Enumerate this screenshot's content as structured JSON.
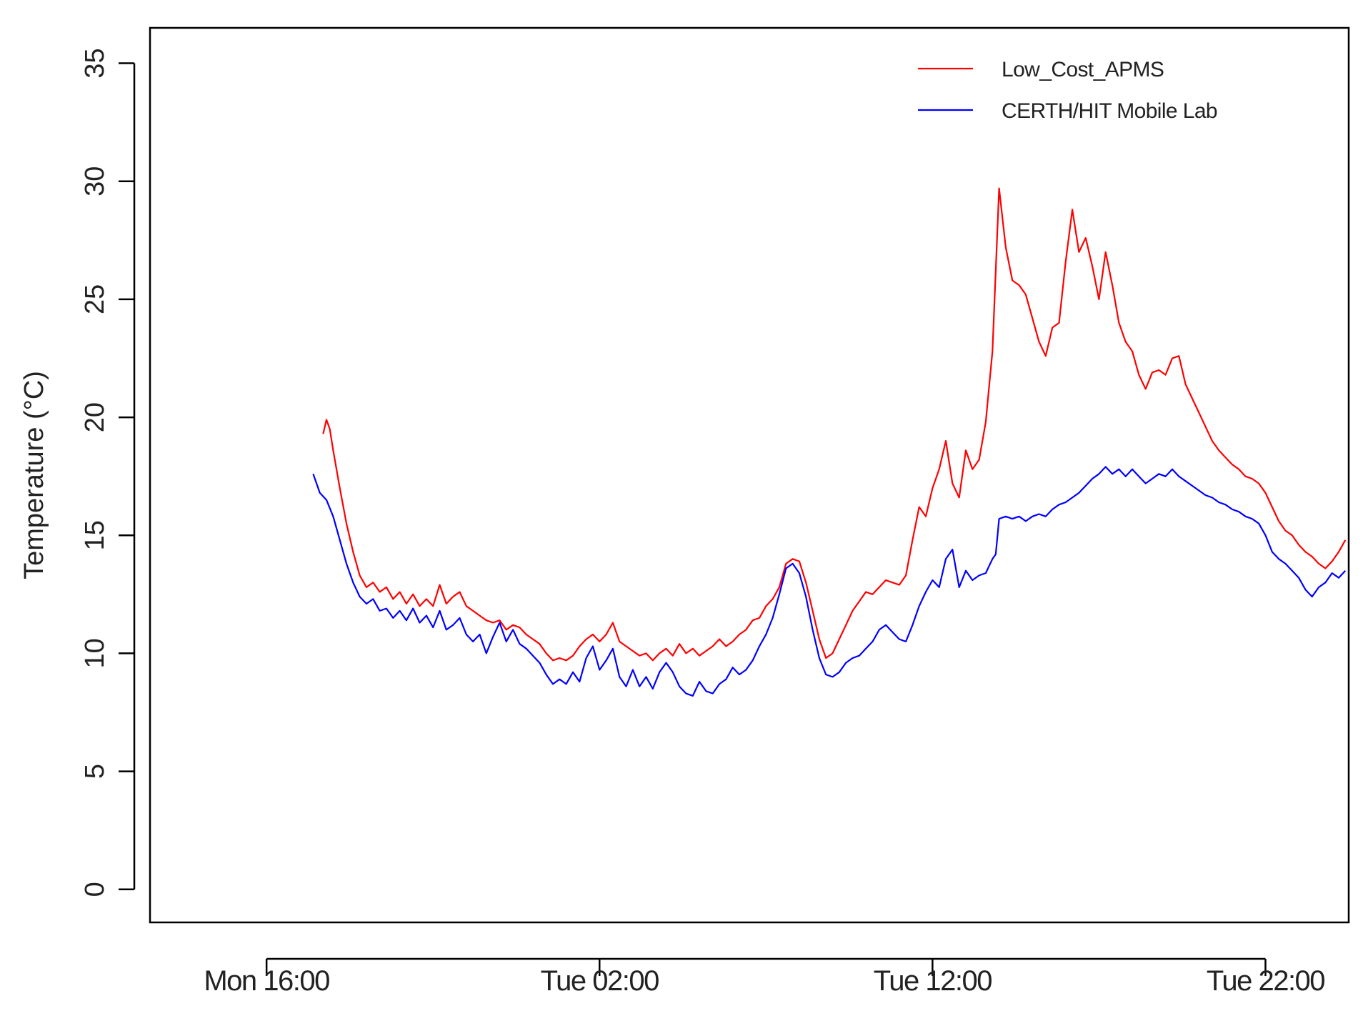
{
  "chart_data": {
    "type": "line",
    "title": "",
    "xlabel": "",
    "ylabel": "Temperature (°C)",
    "x_axis": {
      "unit": "time",
      "range_hours": [
        -3.5,
        32.5
      ],
      "ticks": [
        {
          "label": "Mon 16:00",
          "hours_from_mon_16": 0
        },
        {
          "label": "Tue 02:00",
          "hours_from_mon_16": 10
        },
        {
          "label": "Tue 12:00",
          "hours_from_mon_16": 20
        },
        {
          "label": "Tue 22:00",
          "hours_from_mon_16": 30
        }
      ]
    },
    "ylim": [
      -1.4,
      36.5
    ],
    "yticks": [
      0,
      5,
      10,
      15,
      20,
      25,
      30,
      35
    ],
    "grid": false,
    "legend_position": "top-right",
    "series": [
      {
        "name": "Low_Cost_APMS",
        "color": "#ff0000",
        "points": [
          [
            1.7,
            19.3
          ],
          [
            1.8,
            19.9
          ],
          [
            1.9,
            19.5
          ],
          [
            2.0,
            18.6
          ],
          [
            2.2,
            17.0
          ],
          [
            2.4,
            15.5
          ],
          [
            2.6,
            14.3
          ],
          [
            2.8,
            13.3
          ],
          [
            3.0,
            12.8
          ],
          [
            3.2,
            13.0
          ],
          [
            3.4,
            12.6
          ],
          [
            3.6,
            12.8
          ],
          [
            3.8,
            12.3
          ],
          [
            4.0,
            12.6
          ],
          [
            4.2,
            12.1
          ],
          [
            4.4,
            12.5
          ],
          [
            4.6,
            12.0
          ],
          [
            4.8,
            12.3
          ],
          [
            5.0,
            12.0
          ],
          [
            5.2,
            12.9
          ],
          [
            5.4,
            12.1
          ],
          [
            5.6,
            12.4
          ],
          [
            5.8,
            12.6
          ],
          [
            6.0,
            12.0
          ],
          [
            6.2,
            11.8
          ],
          [
            6.4,
            11.6
          ],
          [
            6.6,
            11.4
          ],
          [
            6.8,
            11.3
          ],
          [
            7.0,
            11.4
          ],
          [
            7.2,
            11.0
          ],
          [
            7.4,
            11.2
          ],
          [
            7.6,
            11.1
          ],
          [
            7.8,
            10.8
          ],
          [
            8.0,
            10.6
          ],
          [
            8.2,
            10.4
          ],
          [
            8.4,
            10.0
          ],
          [
            8.6,
            9.7
          ],
          [
            8.8,
            9.8
          ],
          [
            9.0,
            9.7
          ],
          [
            9.2,
            9.9
          ],
          [
            9.4,
            10.3
          ],
          [
            9.6,
            10.6
          ],
          [
            9.8,
            10.8
          ],
          [
            10.0,
            10.5
          ],
          [
            10.2,
            10.8
          ],
          [
            10.4,
            11.3
          ],
          [
            10.6,
            10.5
          ],
          [
            10.8,
            10.3
          ],
          [
            11.0,
            10.1
          ],
          [
            11.2,
            9.9
          ],
          [
            11.4,
            10.0
          ],
          [
            11.6,
            9.7
          ],
          [
            11.8,
            10.0
          ],
          [
            12.0,
            10.2
          ],
          [
            12.2,
            9.9
          ],
          [
            12.4,
            10.4
          ],
          [
            12.6,
            10.0
          ],
          [
            12.8,
            10.2
          ],
          [
            13.0,
            9.9
          ],
          [
            13.2,
            10.1
          ],
          [
            13.4,
            10.3
          ],
          [
            13.6,
            10.6
          ],
          [
            13.8,
            10.3
          ],
          [
            14.0,
            10.5
          ],
          [
            14.2,
            10.8
          ],
          [
            14.4,
            11.0
          ],
          [
            14.6,
            11.4
          ],
          [
            14.8,
            11.5
          ],
          [
            15.0,
            12.0
          ],
          [
            15.2,
            12.3
          ],
          [
            15.4,
            12.8
          ],
          [
            15.6,
            13.8
          ],
          [
            15.8,
            14.0
          ],
          [
            16.0,
            13.9
          ],
          [
            16.2,
            13.0
          ],
          [
            16.4,
            11.8
          ],
          [
            16.6,
            10.6
          ],
          [
            16.8,
            9.8
          ],
          [
            17.0,
            10.0
          ],
          [
            17.2,
            10.6
          ],
          [
            17.4,
            11.2
          ],
          [
            17.6,
            11.8
          ],
          [
            17.8,
            12.2
          ],
          [
            18.0,
            12.6
          ],
          [
            18.2,
            12.5
          ],
          [
            18.4,
            12.8
          ],
          [
            18.6,
            13.1
          ],
          [
            18.8,
            13.0
          ],
          [
            19.0,
            12.9
          ],
          [
            19.2,
            13.3
          ],
          [
            19.4,
            14.8
          ],
          [
            19.6,
            16.2
          ],
          [
            19.8,
            15.8
          ],
          [
            20.0,
            17.0
          ],
          [
            20.2,
            17.8
          ],
          [
            20.4,
            19.0
          ],
          [
            20.6,
            17.2
          ],
          [
            20.8,
            16.6
          ],
          [
            21.0,
            18.6
          ],
          [
            21.2,
            17.8
          ],
          [
            21.4,
            18.2
          ],
          [
            21.6,
            19.8
          ],
          [
            21.8,
            22.8
          ],
          [
            22.0,
            29.7
          ],
          [
            22.2,
            27.2
          ],
          [
            22.4,
            25.8
          ],
          [
            22.6,
            25.6
          ],
          [
            22.8,
            25.2
          ],
          [
            23.0,
            24.2
          ],
          [
            23.2,
            23.2
          ],
          [
            23.4,
            22.6
          ],
          [
            23.6,
            23.8
          ],
          [
            23.8,
            24.0
          ],
          [
            24.0,
            26.6
          ],
          [
            24.2,
            28.8
          ],
          [
            24.4,
            27.0
          ],
          [
            24.6,
            27.6
          ],
          [
            24.8,
            26.4
          ],
          [
            25.0,
            25.0
          ],
          [
            25.2,
            27.0
          ],
          [
            25.4,
            25.6
          ],
          [
            25.6,
            24.0
          ],
          [
            25.8,
            23.2
          ],
          [
            26.0,
            22.8
          ],
          [
            26.2,
            21.8
          ],
          [
            26.4,
            21.2
          ],
          [
            26.6,
            21.9
          ],
          [
            26.8,
            22.0
          ],
          [
            27.0,
            21.8
          ],
          [
            27.2,
            22.5
          ],
          [
            27.4,
            22.6
          ],
          [
            27.6,
            21.4
          ],
          [
            27.8,
            20.8
          ],
          [
            28.0,
            20.2
          ],
          [
            28.2,
            19.6
          ],
          [
            28.4,
            19.0
          ],
          [
            28.6,
            18.6
          ],
          [
            28.8,
            18.3
          ],
          [
            29.0,
            18.0
          ],
          [
            29.2,
            17.8
          ],
          [
            29.4,
            17.5
          ],
          [
            29.6,
            17.4
          ],
          [
            29.8,
            17.2
          ],
          [
            30.0,
            16.8
          ],
          [
            30.2,
            16.2
          ],
          [
            30.4,
            15.6
          ],
          [
            30.6,
            15.2
          ],
          [
            30.8,
            15.0
          ],
          [
            31.0,
            14.6
          ],
          [
            31.2,
            14.3
          ],
          [
            31.4,
            14.1
          ],
          [
            31.6,
            13.8
          ],
          [
            31.8,
            13.6
          ],
          [
            32.0,
            13.9
          ],
          [
            32.2,
            14.3
          ],
          [
            32.4,
            14.8
          ]
        ]
      },
      {
        "name": "CERTH/HIT Mobile Lab",
        "color": "#0000ff",
        "points": [
          [
            1.4,
            17.6
          ],
          [
            1.6,
            16.8
          ],
          [
            1.8,
            16.5
          ],
          [
            2.0,
            15.8
          ],
          [
            2.2,
            14.8
          ],
          [
            2.4,
            13.8
          ],
          [
            2.6,
            13.0
          ],
          [
            2.8,
            12.4
          ],
          [
            3.0,
            12.1
          ],
          [
            3.2,
            12.3
          ],
          [
            3.4,
            11.8
          ],
          [
            3.6,
            11.9
          ],
          [
            3.8,
            11.5
          ],
          [
            4.0,
            11.8
          ],
          [
            4.2,
            11.4
          ],
          [
            4.4,
            11.9
          ],
          [
            4.6,
            11.3
          ],
          [
            4.8,
            11.6
          ],
          [
            5.0,
            11.1
          ],
          [
            5.2,
            11.8
          ],
          [
            5.4,
            11.0
          ],
          [
            5.6,
            11.2
          ],
          [
            5.8,
            11.5
          ],
          [
            6.0,
            10.8
          ],
          [
            6.2,
            10.5
          ],
          [
            6.4,
            10.8
          ],
          [
            6.6,
            10.0
          ],
          [
            6.8,
            10.7
          ],
          [
            7.0,
            11.3
          ],
          [
            7.2,
            10.5
          ],
          [
            7.4,
            11.0
          ],
          [
            7.6,
            10.4
          ],
          [
            7.8,
            10.2
          ],
          [
            8.0,
            9.9
          ],
          [
            8.2,
            9.6
          ],
          [
            8.4,
            9.1
          ],
          [
            8.6,
            8.7
          ],
          [
            8.8,
            8.9
          ],
          [
            9.0,
            8.7
          ],
          [
            9.2,
            9.2
          ],
          [
            9.4,
            8.8
          ],
          [
            9.6,
            9.8
          ],
          [
            9.8,
            10.3
          ],
          [
            10.0,
            9.3
          ],
          [
            10.2,
            9.7
          ],
          [
            10.4,
            10.2
          ],
          [
            10.6,
            9.0
          ],
          [
            10.8,
            8.6
          ],
          [
            11.0,
            9.3
          ],
          [
            11.2,
            8.6
          ],
          [
            11.4,
            9.0
          ],
          [
            11.6,
            8.5
          ],
          [
            11.8,
            9.2
          ],
          [
            12.0,
            9.6
          ],
          [
            12.2,
            9.2
          ],
          [
            12.4,
            8.6
          ],
          [
            12.6,
            8.3
          ],
          [
            12.8,
            8.2
          ],
          [
            13.0,
            8.8
          ],
          [
            13.2,
            8.4
          ],
          [
            13.4,
            8.3
          ],
          [
            13.6,
            8.7
          ],
          [
            13.8,
            8.9
          ],
          [
            14.0,
            9.4
          ],
          [
            14.2,
            9.1
          ],
          [
            14.4,
            9.3
          ],
          [
            14.6,
            9.7
          ],
          [
            14.8,
            10.3
          ],
          [
            15.0,
            10.8
          ],
          [
            15.2,
            11.5
          ],
          [
            15.4,
            12.5
          ],
          [
            15.6,
            13.6
          ],
          [
            15.8,
            13.8
          ],
          [
            16.0,
            13.4
          ],
          [
            16.2,
            12.4
          ],
          [
            16.4,
            11.0
          ],
          [
            16.6,
            9.8
          ],
          [
            16.8,
            9.1
          ],
          [
            17.0,
            9.0
          ],
          [
            17.2,
            9.2
          ],
          [
            17.4,
            9.6
          ],
          [
            17.6,
            9.8
          ],
          [
            17.8,
            9.9
          ],
          [
            18.0,
            10.2
          ],
          [
            18.2,
            10.5
          ],
          [
            18.4,
            11.0
          ],
          [
            18.6,
            11.2
          ],
          [
            18.8,
            10.9
          ],
          [
            19.0,
            10.6
          ],
          [
            19.2,
            10.5
          ],
          [
            19.4,
            11.2
          ],
          [
            19.6,
            12.0
          ],
          [
            19.8,
            12.6
          ],
          [
            20.0,
            13.1
          ],
          [
            20.2,
            12.8
          ],
          [
            20.4,
            14.0
          ],
          [
            20.6,
            14.4
          ],
          [
            20.8,
            12.8
          ],
          [
            21.0,
            13.5
          ],
          [
            21.2,
            13.1
          ],
          [
            21.4,
            13.3
          ],
          [
            21.6,
            13.4
          ],
          [
            21.8,
            14.0
          ],
          [
            21.9,
            14.2
          ],
          [
            22.0,
            15.7
          ],
          [
            22.2,
            15.8
          ],
          [
            22.4,
            15.7
          ],
          [
            22.6,
            15.8
          ],
          [
            22.8,
            15.6
          ],
          [
            23.0,
            15.8
          ],
          [
            23.2,
            15.9
          ],
          [
            23.4,
            15.8
          ],
          [
            23.6,
            16.1
          ],
          [
            23.8,
            16.3
          ],
          [
            24.0,
            16.4
          ],
          [
            24.2,
            16.6
          ],
          [
            24.4,
            16.8
          ],
          [
            24.6,
            17.1
          ],
          [
            24.8,
            17.4
          ],
          [
            25.0,
            17.6
          ],
          [
            25.2,
            17.9
          ],
          [
            25.4,
            17.6
          ],
          [
            25.6,
            17.8
          ],
          [
            25.8,
            17.5
          ],
          [
            26.0,
            17.8
          ],
          [
            26.2,
            17.5
          ],
          [
            26.4,
            17.2
          ],
          [
            26.6,
            17.4
          ],
          [
            26.8,
            17.6
          ],
          [
            27.0,
            17.5
          ],
          [
            27.2,
            17.8
          ],
          [
            27.4,
            17.5
          ],
          [
            27.6,
            17.3
          ],
          [
            27.8,
            17.1
          ],
          [
            28.0,
            16.9
          ],
          [
            28.2,
            16.7
          ],
          [
            28.4,
            16.6
          ],
          [
            28.6,
            16.4
          ],
          [
            28.8,
            16.3
          ],
          [
            29.0,
            16.1
          ],
          [
            29.2,
            16.0
          ],
          [
            29.4,
            15.8
          ],
          [
            29.6,
            15.7
          ],
          [
            29.8,
            15.5
          ],
          [
            30.0,
            15.0
          ],
          [
            30.2,
            14.3
          ],
          [
            30.4,
            14.0
          ],
          [
            30.6,
            13.8
          ],
          [
            30.8,
            13.5
          ],
          [
            31.0,
            13.2
          ],
          [
            31.2,
            12.7
          ],
          [
            31.4,
            12.4
          ],
          [
            31.6,
            12.8
          ],
          [
            31.8,
            13.0
          ],
          [
            32.0,
            13.4
          ],
          [
            32.2,
            13.2
          ],
          [
            32.4,
            13.5
          ]
        ]
      }
    ]
  }
}
